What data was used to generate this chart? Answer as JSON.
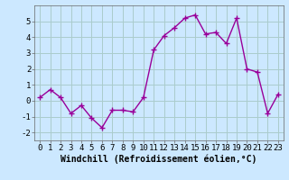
{
  "x": [
    0,
    1,
    2,
    3,
    4,
    5,
    6,
    7,
    8,
    9,
    10,
    11,
    12,
    13,
    14,
    15,
    16,
    17,
    18,
    19,
    20,
    21,
    22,
    23
  ],
  "y": [
    0.2,
    0.7,
    0.2,
    -0.8,
    -0.3,
    -1.1,
    -1.7,
    -0.6,
    -0.6,
    -0.7,
    0.2,
    3.2,
    4.1,
    4.6,
    5.2,
    5.4,
    4.2,
    4.3,
    3.6,
    5.2,
    2.0,
    1.8,
    -0.8,
    0.4
  ],
  "line_color": "#990099",
  "marker": "+",
  "marker_size": 4,
  "marker_linewidth": 1.0,
  "bg_color": "#cce8ff",
  "grid_color": "#aacccc",
  "xlabel": "Windchill (Refroidissement éolien,°C)",
  "xlabel_fontsize": 7,
  "tick_fontsize": 6.5,
  "ylim": [
    -2.5,
    6.0
  ],
  "xlim": [
    -0.5,
    23.5
  ],
  "yticks": [
    -2,
    -1,
    0,
    1,
    2,
    3,
    4,
    5
  ],
  "xticks": [
    0,
    1,
    2,
    3,
    4,
    5,
    6,
    7,
    8,
    9,
    10,
    11,
    12,
    13,
    14,
    15,
    16,
    17,
    18,
    19,
    20,
    21,
    22,
    23
  ],
  "line_width": 1.0,
  "spine_color": "#666666"
}
